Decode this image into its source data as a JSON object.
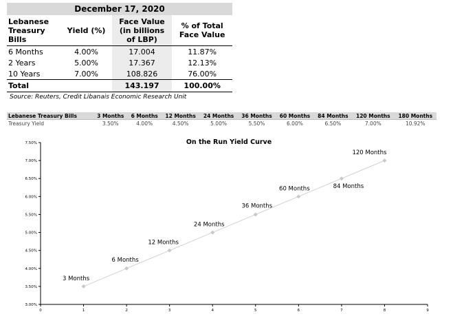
{
  "table": {
    "date": "December 17, 2020",
    "headers": [
      [
        "Lebanese",
        "Treasury",
        "Bills"
      ],
      [
        "Yield (%)"
      ],
      [
        "Face Value",
        "(in billions",
        "of LBP)"
      ],
      [
        "% of Total",
        "Face Value"
      ]
    ],
    "rows": [
      [
        "6 Months",
        "4.00%",
        "17.004",
        "11.87%"
      ],
      [
        "2 Years",
        "5.00%",
        "17.367",
        "12.13%"
      ],
      [
        "10 Years",
        "7.00%",
        "108.826",
        "76.00%"
      ]
    ],
    "total": [
      "Total",
      "",
      "143.197",
      "100.00%"
    ],
    "source": "Source: Reuters, Credit Libanais Economic Research Unit"
  },
  "strip": {
    "header_label": "Lebanese Treasury Bills",
    "row_label": "Treasury Yield",
    "tenors": [
      "3 Months",
      "6 Months",
      "12 Months",
      "24 Months",
      "36 Months",
      "60 Months",
      "84 Months",
      "120 Months",
      "180 Months"
    ],
    "yields": [
      "3.50%",
      "4.00%",
      "4.50%",
      "5.00%",
      "5.50%",
      "6.00%",
      "6.50%",
      "7.00%",
      "10.92%"
    ]
  },
  "chart_data": {
    "type": "line",
    "title": "On the Run Yield Curve",
    "xlabel": "",
    "ylabel": "",
    "xlim": [
      0,
      9
    ],
    "ylim": [
      3.0,
      7.5
    ],
    "x_ticks": [
      "0",
      "1",
      "2",
      "3",
      "4",
      "5",
      "6",
      "7",
      "8",
      "9"
    ],
    "y_ticks": [
      "3.00%",
      "3.50%",
      "4.00%",
      "4.50%",
      "5.00%",
      "5.50%",
      "6.00%",
      "6.50%",
      "7.00%",
      "7.50%"
    ],
    "grid": false,
    "colors": {
      "line": "#d0d0d0",
      "marker": "#c8c8c8",
      "axis": "#000000"
    },
    "series": [
      {
        "x": [
          1,
          2,
          3,
          4,
          5,
          6,
          7,
          8
        ],
        "y": [
          3.5,
          4.0,
          4.5,
          5.0,
          5.5,
          6.0,
          6.5,
          7.0
        ],
        "labels": [
          "3 Months",
          "6 Months",
          "12 Months",
          "24 Months",
          "36 Months",
          "60 Months",
          "84 Months",
          "120 Months"
        ]
      }
    ]
  }
}
